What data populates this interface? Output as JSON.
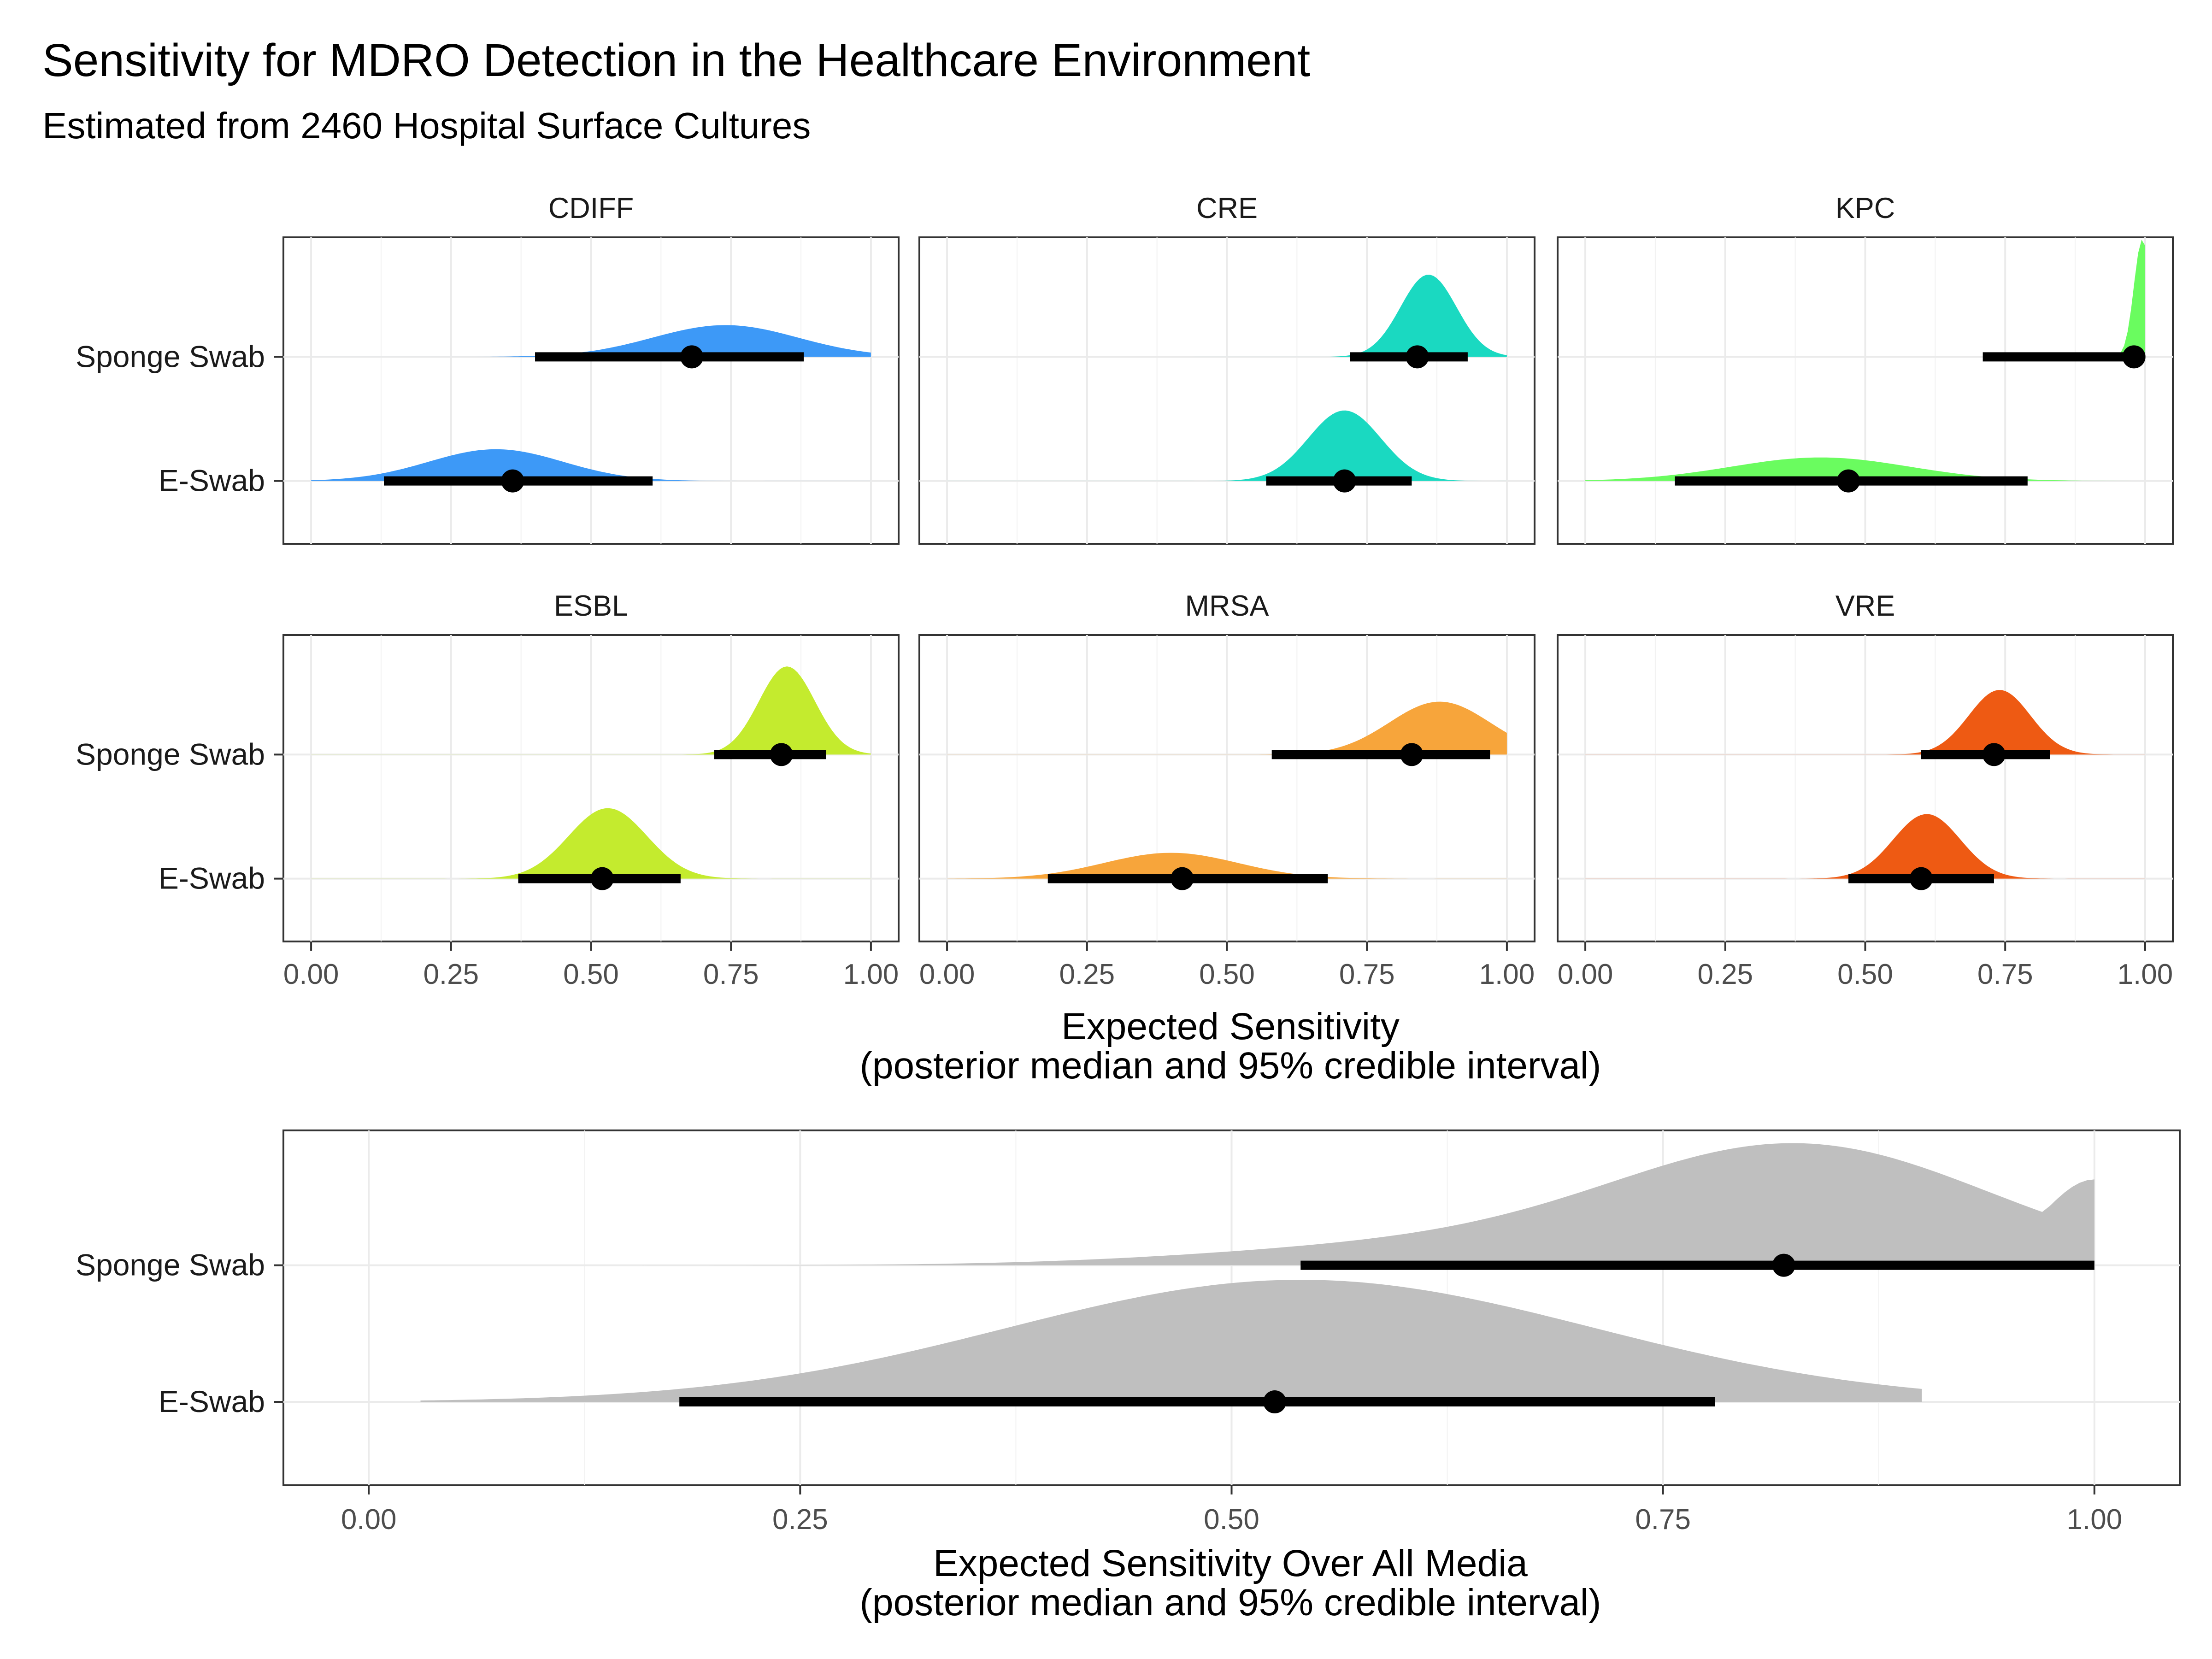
{
  "title": "Sensitivity for MDRO Detection in the Healthcare Environment",
  "subtitle": "Estimated from 2460 Hospital Surface Cultures",
  "facet_xlabel_line1": "Expected Sensitivity",
  "facet_xlabel_line2": "(posterior median and 95% credible interval)",
  "overall_xlabel_line1": "Expected Sensitivity Over All Media",
  "overall_xlabel_line2": "(posterior median and 95% credible interval)",
  "chart_data": [
    {
      "type": "area",
      "kind": "half-eye posterior densities, faceted by organism",
      "categories": [
        "Sponge Swab",
        "E-Swab"
      ],
      "xlim": [
        0,
        1
      ],
      "xticks": [
        "0.00",
        "0.25",
        "0.50",
        "0.75",
        "1.00"
      ],
      "grid": true,
      "facets": [
        {
          "name": "CDIFF",
          "color": "#3d99f7",
          "series": [
            {
              "name": "Sponge Swab",
              "median": 0.68,
              "lo": 0.4,
              "hi": 0.88,
              "mode": 0.74,
              "sd": 0.13,
              "dmax": 0.27
            },
            {
              "name": "E-Swab",
              "median": 0.36,
              "lo": 0.13,
              "hi": 0.61,
              "mode": 0.33,
              "sd": 0.12,
              "dmax": 0.27
            }
          ]
        },
        {
          "name": "CRE",
          "color": "#1ad9c1",
          "series": [
            {
              "name": "Sponge Swab",
              "median": 0.84,
              "lo": 0.72,
              "hi": 0.93,
              "mode": 0.86,
              "sd": 0.05,
              "dmax": 0.7
            },
            {
              "name": "E-Swab",
              "median": 0.71,
              "lo": 0.57,
              "hi": 0.83,
              "mode": 0.71,
              "sd": 0.065,
              "dmax": 0.6
            }
          ]
        },
        {
          "name": "KPC",
          "color": "#6afc5f",
          "series": [
            {
              "name": "Sponge Swab",
              "median": 0.98,
              "lo": 0.71,
              "hi": 0.99,
              "mode": 0.995,
              "sd": 0.015,
              "dmax": 1.8
            },
            {
              "name": "E-Swab",
              "median": 0.47,
              "lo": 0.16,
              "hi": 0.79,
              "mode": 0.42,
              "sd": 0.16,
              "dmax": 0.2
            }
          ]
        },
        {
          "name": "ESBL",
          "color": "#c4eb2e",
          "series": [
            {
              "name": "Sponge Swab",
              "median": 0.84,
              "lo": 0.72,
              "hi": 0.92,
              "mode": 0.85,
              "sd": 0.05,
              "dmax": 0.75
            },
            {
              "name": "E-Swab",
              "median": 0.52,
              "lo": 0.37,
              "hi": 0.66,
              "mode": 0.53,
              "sd": 0.07,
              "dmax": 0.6
            }
          ]
        },
        {
          "name": "MRSA",
          "color": "#f7a53b",
          "series": [
            {
              "name": "Sponge Swab",
              "median": 0.83,
              "lo": 0.58,
              "hi": 0.97,
              "mode": 0.88,
              "sd": 0.09,
              "dmax": 0.45
            },
            {
              "name": "E-Swab",
              "median": 0.42,
              "lo": 0.18,
              "hi": 0.68,
              "mode": 0.4,
              "sd": 0.12,
              "dmax": 0.22
            }
          ]
        },
        {
          "name": "VRE",
          "color": "#ee5a13",
          "series": [
            {
              "name": "Sponge Swab",
              "median": 0.73,
              "lo": 0.6,
              "hi": 0.83,
              "mode": 0.74,
              "sd": 0.055,
              "dmax": 0.55
            },
            {
              "name": "E-Swab",
              "median": 0.6,
              "lo": 0.47,
              "hi": 0.73,
              "mode": 0.61,
              "sd": 0.06,
              "dmax": 0.55
            }
          ]
        }
      ]
    },
    {
      "type": "area",
      "kind": "half-eye posterior densities, pooled over all media",
      "categories": [
        "Sponge Swab",
        "E-Swab"
      ],
      "xlim": [
        0,
        1
      ],
      "xticks": [
        "0.00",
        "0.25",
        "0.50",
        "0.75",
        "1.00"
      ],
      "grid": true,
      "color": "#bfbfbf",
      "series": [
        {
          "name": "Sponge Swab",
          "median": 0.82,
          "lo": 0.54,
          "hi": 1.0
        },
        {
          "name": "E-Swab",
          "median": 0.525,
          "lo": 0.18,
          "hi": 0.78
        }
      ]
    }
  ]
}
